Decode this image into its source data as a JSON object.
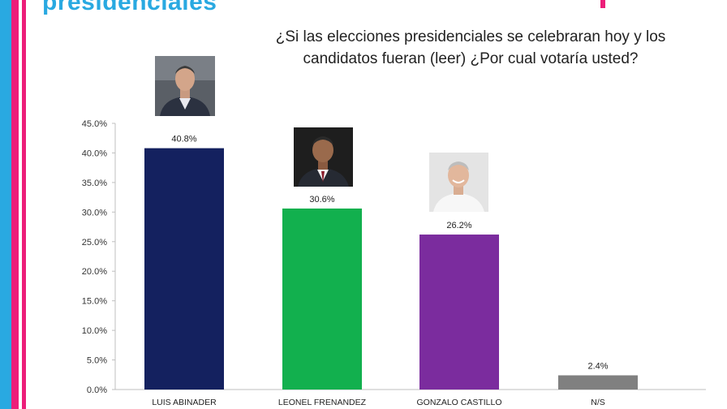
{
  "header": {
    "title": "presidenciales"
  },
  "question": "¿Si las elecciones presidenciales se celebraran hoy y los candidatos fueran (leer) ¿Por cual votaría usted?",
  "colors": {
    "accent_cyan": "#29a9e1",
    "accent_pink": "#ec1e79"
  },
  "chart_data": {
    "type": "bar",
    "categories": [
      "LUIS ABINADER",
      "LEONEL FRENANDEZ",
      "GONZALO CASTILLO",
      "N/S"
    ],
    "values": [
      40.8,
      30.6,
      26.2,
      2.4
    ],
    "data_labels": [
      "40.8%",
      "30.6%",
      "26.2%",
      "2.4%"
    ],
    "bar_colors": [
      "#14215f",
      "#12b04e",
      "#7b2c9e",
      "#808080"
    ],
    "title": "",
    "xlabel": "",
    "ylabel": "",
    "ylim": [
      0,
      45
    ],
    "y_ticks": [
      "0.0%",
      "5.0%",
      "10.0%",
      "15.0%",
      "20.0%",
      "25.0%",
      "30.0%",
      "35.0%",
      "40.0%",
      "45.0%"
    ],
    "grid": false,
    "legend": "none"
  },
  "photos": [
    {
      "name": "luis-abinader-photo",
      "icon": "portrait-icon"
    },
    {
      "name": "leonel-fernandez-photo",
      "icon": "portrait-icon"
    },
    {
      "name": "gonzalo-castillo-photo",
      "icon": "portrait-icon"
    }
  ]
}
